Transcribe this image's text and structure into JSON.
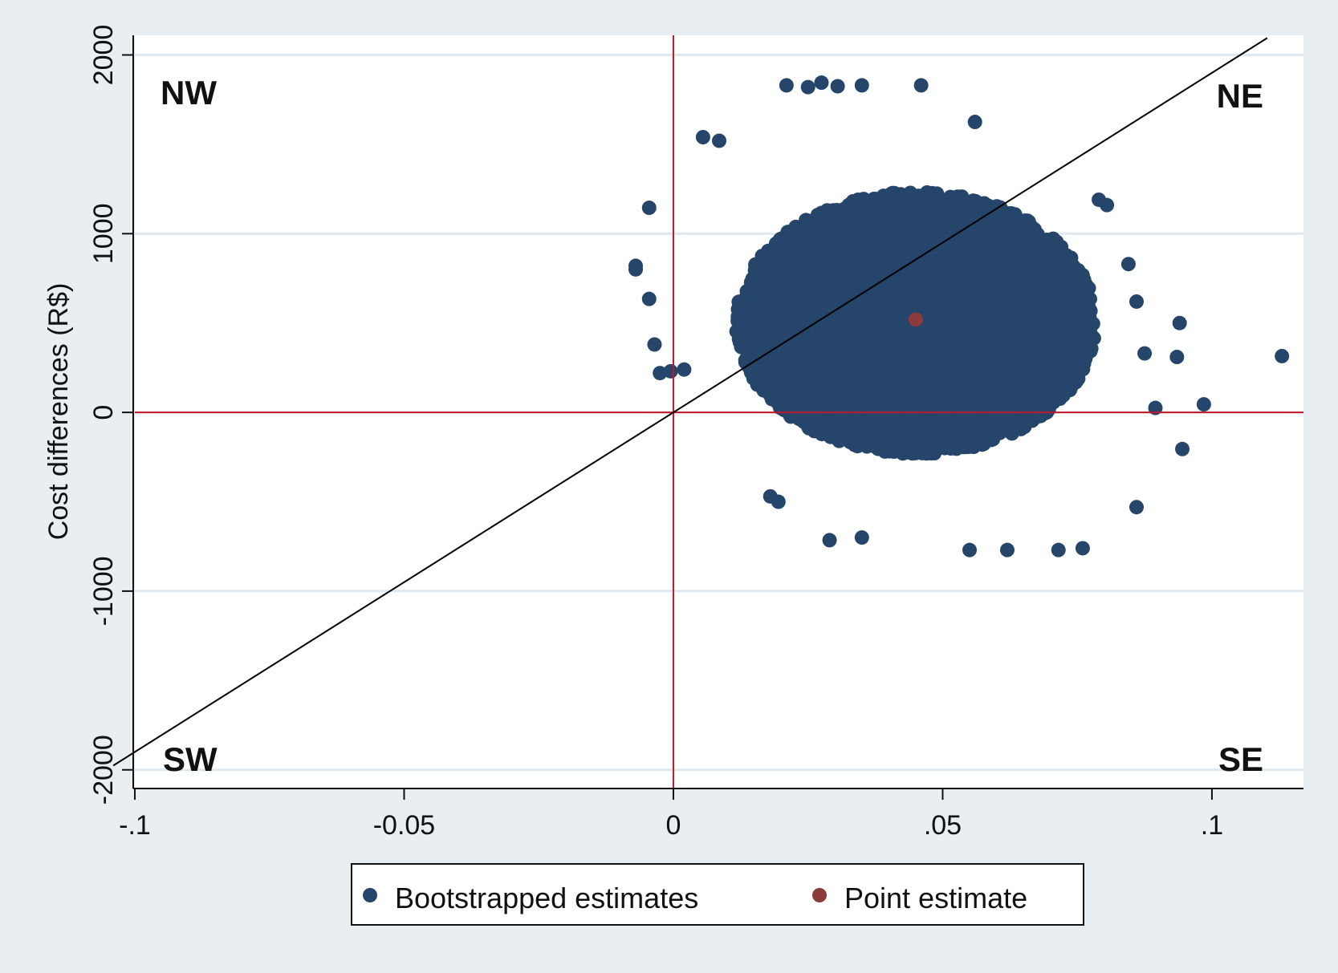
{
  "chart_data": {
    "type": "scatter",
    "title": "",
    "xlabel": "",
    "ylabel": "Cost differences (R$)",
    "xlim": [
      -0.1,
      0.117
    ],
    "ylim": [
      -2100,
      2110
    ],
    "x_ticks": [
      {
        "value": -0.1,
        "label": "-.1"
      },
      {
        "value": -0.05,
        "label": "-0.05"
      },
      {
        "value": 0,
        "label": "0"
      },
      {
        "value": 0.05,
        "label": ".05"
      },
      {
        "value": 0.1,
        "label": ".1"
      }
    ],
    "y_ticks": [
      {
        "value": -2000,
        "label": "-2000"
      },
      {
        "value": -1000,
        "label": "-1000"
      },
      {
        "value": 0,
        "label": "0"
      },
      {
        "value": 1000,
        "label": "1000"
      },
      {
        "value": 2000,
        "label": "2000"
      }
    ],
    "grid": {
      "horizontal": true,
      "vertical": false
    },
    "colors": {
      "bootstrap": "#25456b",
      "point": "#8c3a3c",
      "reference_lines": "#c0182a",
      "threshold_line": "#000000",
      "grid": "#dfe8ee",
      "background": "#e9eef2",
      "plot_background": "#ffffff"
    },
    "reference_lines": {
      "x": 0,
      "y": 0
    },
    "threshold_line": {
      "x": [
        -0.1,
        0.1
      ],
      "y": [
        -1900,
        1900
      ]
    },
    "cloud": {
      "center_x": 0.045,
      "center_y": 500,
      "x_spread": 0.0215,
      "y_spread": 450
    },
    "outliers": [
      {
        "x": -0.007,
        "y": 800
      },
      {
        "x": -0.007,
        "y": 820
      },
      {
        "x": -0.0045,
        "y": 1145
      },
      {
        "x": -0.0045,
        "y": 635
      },
      {
        "x": -0.0035,
        "y": 380
      },
      {
        "x": -0.0025,
        "y": 220
      },
      {
        "x": -0.0005,
        "y": 230
      },
      {
        "x": 0.002,
        "y": 240
      },
      {
        "x": 0.0055,
        "y": 1540
      },
      {
        "x": 0.0085,
        "y": 1520
      },
      {
        "x": 0.021,
        "y": 1830
      },
      {
        "x": 0.025,
        "y": 1820
      },
      {
        "x": 0.0275,
        "y": 1845
      },
      {
        "x": 0.0305,
        "y": 1825
      },
      {
        "x": 0.035,
        "y": 1830
      },
      {
        "x": 0.046,
        "y": 1830
      },
      {
        "x": 0.056,
        "y": 1625
      },
      {
        "x": 0.018,
        "y": -470
      },
      {
        "x": 0.0195,
        "y": -500
      },
      {
        "x": 0.029,
        "y": -715
      },
      {
        "x": 0.035,
        "y": -700
      },
      {
        "x": 0.055,
        "y": -770
      },
      {
        "x": 0.062,
        "y": -770
      },
      {
        "x": 0.0715,
        "y": -770
      },
      {
        "x": 0.076,
        "y": -760
      },
      {
        "x": 0.079,
        "y": 1190
      },
      {
        "x": 0.0805,
        "y": 1160
      },
      {
        "x": 0.0845,
        "y": 830
      },
      {
        "x": 0.086,
        "y": 620
      },
      {
        "x": 0.086,
        "y": -530
      },
      {
        "x": 0.0875,
        "y": 330
      },
      {
        "x": 0.0895,
        "y": 25
      },
      {
        "x": 0.094,
        "y": 500
      },
      {
        "x": 0.0935,
        "y": 310
      },
      {
        "x": 0.0945,
        "y": -205
      },
      {
        "x": 0.0985,
        "y": 45
      },
      {
        "x": 0.113,
        "y": 315
      }
    ],
    "point_estimate": {
      "x": 0.045,
      "y": 520
    },
    "quadrants": [
      "NW",
      "NE",
      "SW",
      "SE"
    ],
    "legend": {
      "placement": "bottom",
      "entries": [
        {
          "label": "Bootstrapped estimates",
          "color": "#25456b"
        },
        {
          "label": "Point estimate",
          "color": "#8c3a3c"
        }
      ]
    }
  }
}
